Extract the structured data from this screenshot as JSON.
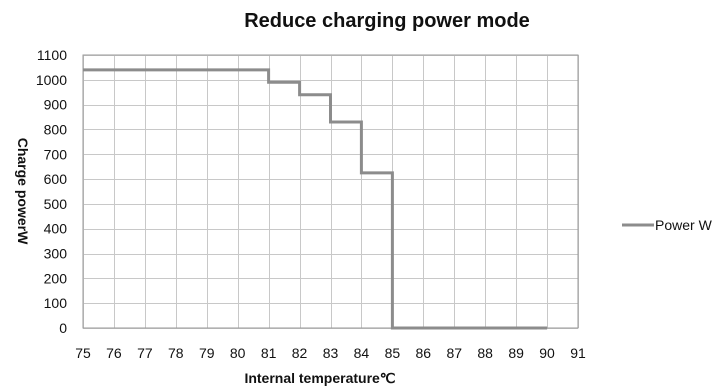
{
  "chart_data": {
    "type": "line",
    "title": "Reduce charging power  mode",
    "xlabel": "Internal temperature℃",
    "ylabel": "Charge powerW",
    "xlim": [
      75,
      91
    ],
    "ylim": [
      0,
      1100
    ],
    "x_ticks": [
      75,
      76,
      77,
      78,
      79,
      80,
      81,
      82,
      83,
      84,
      85,
      86,
      87,
      88,
      89,
      90,
      91
    ],
    "y_ticks": [
      0,
      100,
      200,
      300,
      400,
      500,
      600,
      700,
      800,
      900,
      1000,
      1100
    ],
    "grid": true,
    "legend_position": "right",
    "series": [
      {
        "name": "Power W",
        "color": "#8c8c8c",
        "points": [
          [
            75,
            1040
          ],
          [
            81,
            1040
          ],
          [
            81,
            990
          ],
          [
            82,
            990
          ],
          [
            82,
            940
          ],
          [
            83,
            940
          ],
          [
            83,
            830
          ],
          [
            84,
            830
          ],
          [
            84,
            625
          ],
          [
            85,
            625
          ],
          [
            85,
            0
          ],
          [
            90,
            0
          ]
        ]
      }
    ]
  }
}
